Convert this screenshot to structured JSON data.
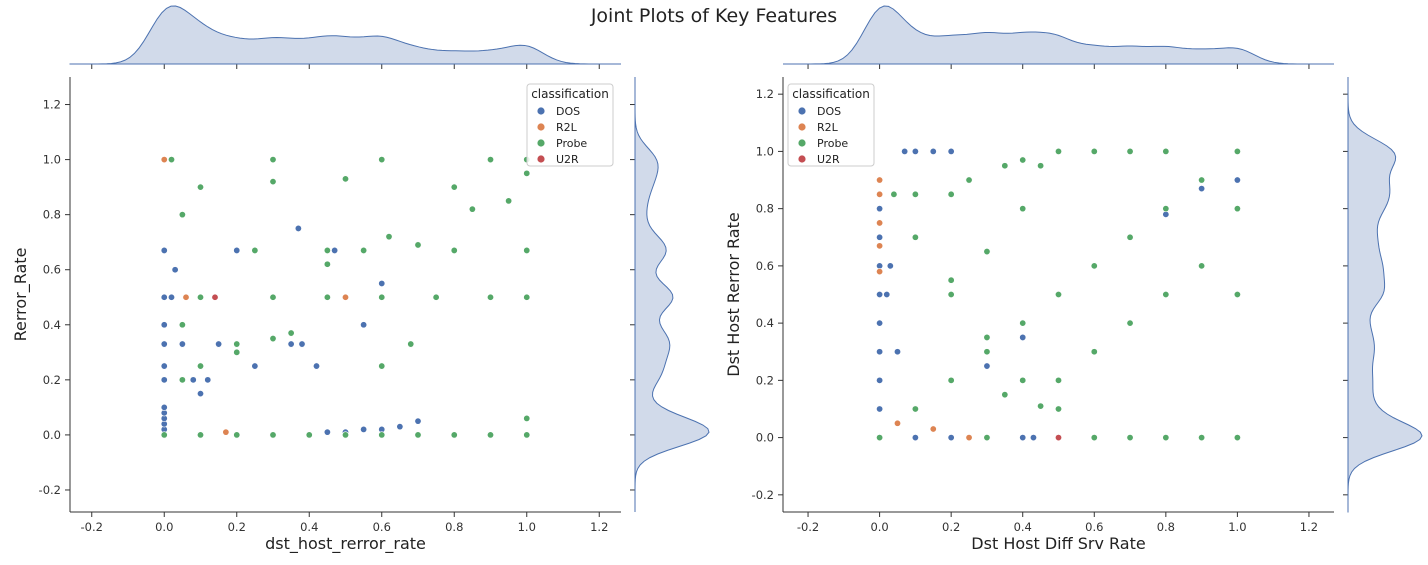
{
  "figure": {
    "title": "Joint Plots of Key Features"
  },
  "colors": {
    "DOS": "#4c72b0",
    "R2L": "#dd8452",
    "Probe": "#55a868",
    "U2R": "#c44e52",
    "kde_fill": "#c9d4e6"
  },
  "chart_data": [
    {
      "type": "scatter",
      "xlabel": "dst_host_rerror_rate",
      "ylabel": "Rerror_Rate",
      "xlim": [
        -0.26,
        1.26
      ],
      "ylim": [
        -0.28,
        1.3
      ],
      "xticks": [
        -0.2,
        0.0,
        0.2,
        0.4,
        0.6,
        0.8,
        1.0,
        1.2
      ],
      "yticks": [
        -0.2,
        0.0,
        0.2,
        0.4,
        0.6,
        0.8,
        1.0,
        1.2
      ],
      "marginals": "kde",
      "legend": {
        "title": "classification",
        "position": "top-right",
        "entries": [
          "DOS",
          "R2L",
          "Probe",
          "U2R"
        ]
      },
      "series": [
        {
          "name": "DOS",
          "points": [
            [
              0,
              0
            ],
            [
              0,
              0.02
            ],
            [
              0,
              0.04
            ],
            [
              0,
              0.06
            ],
            [
              0,
              0.08
            ],
            [
              0,
              0.1
            ],
            [
              0,
              0.2
            ],
            [
              0,
              0.25
            ],
            [
              0,
              0.33
            ],
            [
              0,
              0.4
            ],
            [
              0,
              0.5
            ],
            [
              0,
              0.67
            ],
            [
              0.02,
              0.5
            ],
            [
              0.03,
              0.6
            ],
            [
              0.05,
              0.33
            ],
            [
              0.08,
              0.2
            ],
            [
              0.1,
              0.15
            ],
            [
              0.12,
              0.2
            ],
            [
              0.15,
              0.33
            ],
            [
              0.2,
              0.67
            ],
            [
              0.25,
              0.25
            ],
            [
              0.35,
              0.33
            ],
            [
              0.37,
              0.75
            ],
            [
              0.38,
              0.33
            ],
            [
              0.42,
              0.25
            ],
            [
              0.47,
              0.67
            ],
            [
              0.55,
              0.4
            ],
            [
              0.6,
              0.55
            ],
            [
              0.45,
              0.01
            ],
            [
              0.5,
              0.01
            ],
            [
              0.55,
              0.02
            ],
            [
              0.6,
              0.02
            ],
            [
              0.65,
              0.03
            ],
            [
              0.7,
              0.05
            ],
            [
              0.1,
              0
            ],
            [
              0.2,
              0
            ],
            [
              0.3,
              0
            ],
            [
              0.4,
              0
            ]
          ]
        },
        {
          "name": "R2L",
          "points": [
            [
              0,
              1.0
            ],
            [
              0.06,
              0.5
            ],
            [
              0.17,
              0.01
            ],
            [
              0.5,
              0.5
            ]
          ]
        },
        {
          "name": "Probe",
          "points": [
            [
              0,
              0
            ],
            [
              0.1,
              0
            ],
            [
              0.2,
              0
            ],
            [
              0.3,
              0
            ],
            [
              0.4,
              0
            ],
            [
              0.5,
              0
            ],
            [
              0.6,
              0
            ],
            [
              0.7,
              0
            ],
            [
              0.8,
              0
            ],
            [
              0.9,
              0
            ],
            [
              1.0,
              0
            ],
            [
              1.0,
              0.06
            ],
            [
              0.02,
              1.0
            ],
            [
              0.3,
              1.0
            ],
            [
              0.6,
              1.0
            ],
            [
              0.9,
              1.0
            ],
            [
              1.0,
              1.0
            ],
            [
              0.05,
              0.8
            ],
            [
              0.1,
              0.9
            ],
            [
              0.3,
              0.92
            ],
            [
              0.5,
              0.93
            ],
            [
              0.8,
              0.9
            ],
            [
              1.0,
              0.95
            ],
            [
              0.85,
              0.82
            ],
            [
              0.95,
              0.85
            ],
            [
              0.1,
              0.5
            ],
            [
              0.3,
              0.5
            ],
            [
              0.45,
              0.5
            ],
            [
              0.6,
              0.5
            ],
            [
              0.75,
              0.5
            ],
            [
              0.9,
              0.5
            ],
            [
              1.0,
              0.5
            ],
            [
              0.05,
              0.4
            ],
            [
              0.1,
              0.25
            ],
            [
              0.2,
              0.3
            ],
            [
              0.3,
              0.35
            ],
            [
              0.35,
              0.37
            ],
            [
              0.2,
              0.33
            ],
            [
              0.05,
              0.2
            ],
            [
              0.25,
              0.67
            ],
            [
              0.45,
              0.67
            ],
            [
              0.55,
              0.67
            ],
            [
              0.62,
              0.72
            ],
            [
              0.7,
              0.69
            ],
            [
              0.8,
              0.67
            ],
            [
              1.0,
              0.67
            ],
            [
              0.45,
              0.62
            ],
            [
              0.6,
              0.25
            ],
            [
              0.68,
              0.33
            ]
          ]
        },
        {
          "name": "U2R",
          "points": [
            [
              0.14,
              0.5
            ]
          ]
        }
      ]
    },
    {
      "type": "scatter",
      "xlabel": "Dst Host Diff Srv Rate",
      "ylabel": "Dst Host Rerror Rate",
      "xlim": [
        -0.27,
        1.27
      ],
      "ylim": [
        -0.26,
        1.26
      ],
      "xticks": [
        -0.2,
        0.0,
        0.2,
        0.4,
        0.6,
        0.8,
        1.0,
        1.2
      ],
      "yticks": [
        -0.2,
        0.0,
        0.2,
        0.4,
        0.6,
        0.8,
        1.0,
        1.2
      ],
      "marginals": "kde",
      "legend": {
        "title": "classification",
        "position": "top-left",
        "entries": [
          "DOS",
          "R2L",
          "Probe",
          "U2R"
        ]
      },
      "series": [
        {
          "name": "DOS",
          "points": [
            [
              0,
              0
            ],
            [
              0,
              0.1
            ],
            [
              0,
              0.2
            ],
            [
              0,
              0.3
            ],
            [
              0,
              0.4
            ],
            [
              0,
              0.5
            ],
            [
              0,
              0.6
            ],
            [
              0,
              0.7
            ],
            [
              0,
              0.8
            ],
            [
              0.02,
              0.5
            ],
            [
              0.03,
              0.6
            ],
            [
              0.05,
              0.3
            ],
            [
              0.07,
              1.0
            ],
            [
              0.1,
              1.0
            ],
            [
              0.15,
              1.0
            ],
            [
              0.2,
              1.0
            ],
            [
              0.1,
              0
            ],
            [
              0.2,
              0
            ],
            [
              0.3,
              0
            ],
            [
              0.4,
              0
            ],
            [
              0.43,
              0
            ],
            [
              0.5,
              0.5
            ],
            [
              0.6,
              0.6
            ],
            [
              0.7,
              0.7
            ],
            [
              0.8,
              0.78
            ],
            [
              0.9,
              0.87
            ],
            [
              1.0,
              0.9
            ],
            [
              0.4,
              0.35
            ],
            [
              0.3,
              0.25
            ]
          ]
        },
        {
          "name": "R2L",
          "points": [
            [
              0,
              0.9
            ],
            [
              0,
              0.85
            ],
            [
              0,
              0.75
            ],
            [
              0,
              0.67
            ],
            [
              0,
              0.58
            ],
            [
              0.05,
              0.05
            ],
            [
              0.15,
              0.03
            ],
            [
              0.25,
              0
            ],
            [
              0.3,
              0
            ]
          ]
        },
        {
          "name": "Probe",
          "points": [
            [
              0,
              0
            ],
            [
              0.3,
              0
            ],
            [
              0.5,
              0
            ],
            [
              0.6,
              0
            ],
            [
              0.7,
              0
            ],
            [
              0.8,
              0
            ],
            [
              0.9,
              0
            ],
            [
              1.0,
              0
            ],
            [
              0.04,
              0.85
            ],
            [
              0.1,
              0.85
            ],
            [
              0.2,
              0.85
            ],
            [
              0.25,
              0.9
            ],
            [
              0.35,
              0.95
            ],
            [
              0.4,
              0.97
            ],
            [
              0.5,
              1.0
            ],
            [
              0.6,
              1.0
            ],
            [
              0.7,
              1.0
            ],
            [
              0.8,
              1.0
            ],
            [
              0.1,
              0.1
            ],
            [
              0.2,
              0.2
            ],
            [
              0.3,
              0.3
            ],
            [
              0.4,
              0.4
            ],
            [
              0.5,
              0.5
            ],
            [
              0.6,
              0.6
            ],
            [
              0.7,
              0.7
            ],
            [
              0.8,
              0.8
            ],
            [
              0.9,
              0.9
            ],
            [
              1.0,
              1.0
            ],
            [
              1.0,
              0.5
            ],
            [
              1.0,
              0.8
            ],
            [
              0.2,
              0.5
            ],
            [
              0.3,
              0.65
            ],
            [
              0.4,
              0.8
            ],
            [
              0.45,
              0.95
            ],
            [
              0.1,
              0.7
            ],
            [
              0.2,
              0.55
            ],
            [
              0.3,
              0.35
            ],
            [
              0.4,
              0.2
            ],
            [
              0.5,
              0.1
            ],
            [
              0.5,
              0.2
            ],
            [
              0.6,
              0.3
            ],
            [
              0.7,
              0.4
            ],
            [
              0.8,
              0.5
            ],
            [
              0.9,
              0.6
            ],
            [
              0.35,
              0.15
            ],
            [
              0.45,
              0.11
            ]
          ]
        },
        {
          "name": "U2R",
          "points": [
            [
              0.5,
              0
            ]
          ]
        }
      ]
    }
  ]
}
